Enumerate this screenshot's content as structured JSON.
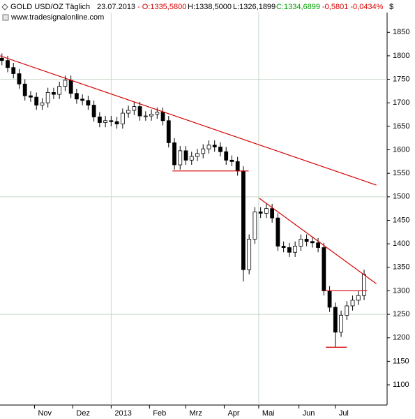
{
  "chart_data": {
    "type": "candlestick",
    "header": {
      "symbol": "GOLD USD/OZ Täglich",
      "date": "23.07.2013",
      "open": "- O:1335,5800",
      "high": "H:1338,5000",
      "low": "L:1326,1899",
      "close": "C:1334,6899",
      "change": "-0,5801 -0,0434%"
    },
    "source": "www.tradesignalonline.com",
    "y_unit": "$",
    "x": [
      0,
      3,
      6,
      9,
      12,
      15,
      18,
      21,
      24,
      27,
      30,
      33,
      36,
      39,
      42,
      45,
      48,
      51,
      54,
      57,
      60,
      63,
      66,
      69,
      72,
      75,
      78,
      81,
      84,
      87,
      90,
      93,
      96,
      99,
      102,
      105,
      108,
      111,
      114,
      117,
      120,
      123,
      126,
      129,
      132,
      135,
      138,
      141,
      144,
      147,
      150,
      153,
      156,
      159,
      162,
      165,
      168,
      171,
      174,
      177,
      180,
      183,
      186,
      189
    ],
    "open": [
      1795,
      1790,
      1775,
      1762,
      1740,
      1715,
      1712,
      1695,
      1700,
      1722,
      1718,
      1735,
      1748,
      1720,
      1708,
      1705,
      1695,
      1670,
      1658,
      1662,
      1660,
      1655,
      1678,
      1684,
      1692,
      1672,
      1672,
      1676,
      1680,
      1662,
      1615,
      1568,
      1598,
      1578,
      1586,
      1592,
      1602,
      1610,
      1606,
      1596,
      1578,
      1575,
      1555,
      1345,
      1410,
      1468,
      1465,
      1475,
      1455,
      1395,
      1392,
      1382,
      1395,
      1410,
      1405,
      1402,
      1392,
      1300,
      1265,
      1212,
      1248,
      1268,
      1280,
      1290
    ],
    "high": [
      1805,
      1800,
      1785,
      1772,
      1750,
      1725,
      1722,
      1710,
      1732,
      1732,
      1745,
      1758,
      1758,
      1730,
      1718,
      1715,
      1705,
      1680,
      1672,
      1672,
      1670,
      1688,
      1694,
      1702,
      1702,
      1682,
      1686,
      1690,
      1690,
      1672,
      1625,
      1608,
      1608,
      1596,
      1602,
      1612,
      1620,
      1620,
      1616,
      1606,
      1588,
      1585,
      1565,
      1420,
      1478,
      1478,
      1485,
      1485,
      1465,
      1405,
      1402,
      1405,
      1420,
      1420,
      1415,
      1412,
      1402,
      1310,
      1275,
      1258,
      1278,
      1290,
      1300,
      1345
    ],
    "low": [
      1780,
      1765,
      1752,
      1730,
      1705,
      1702,
      1685,
      1685,
      1690,
      1708,
      1708,
      1725,
      1710,
      1698,
      1695,
      1685,
      1660,
      1648,
      1648,
      1650,
      1645,
      1645,
      1668,
      1674,
      1662,
      1662,
      1662,
      1666,
      1652,
      1605,
      1558,
      1558,
      1568,
      1568,
      1576,
      1582,
      1592,
      1596,
      1586,
      1568,
      1565,
      1545,
      1320,
      1335,
      1400,
      1455,
      1455,
      1445,
      1385,
      1382,
      1372,
      1372,
      1385,
      1395,
      1392,
      1382,
      1290,
      1255,
      1180,
      1202,
      1238,
      1258,
      1270,
      1280
    ],
    "close": [
      1790,
      1775,
      1762,
      1740,
      1715,
      1712,
      1695,
      1700,
      1722,
      1718,
      1735,
      1748,
      1720,
      1708,
      1705,
      1695,
      1670,
      1658,
      1662,
      1660,
      1655,
      1678,
      1684,
      1692,
      1672,
      1672,
      1676,
      1680,
      1662,
      1615,
      1568,
      1598,
      1578,
      1586,
      1592,
      1602,
      1610,
      1606,
      1596,
      1578,
      1575,
      1555,
      1345,
      1410,
      1468,
      1465,
      1475,
      1455,
      1395,
      1392,
      1382,
      1395,
      1410,
      1405,
      1402,
      1392,
      1300,
      1265,
      1212,
      1248,
      1268,
      1280,
      1290,
      1335
    ],
    "xlim": [
      -1,
      201
    ],
    "ylim": [
      1057,
      1892
    ],
    "yticks": [
      1100,
      1150,
      1200,
      1250,
      1300,
      1350,
      1400,
      1450,
      1500,
      1550,
      1600,
      1650,
      1700,
      1750,
      1800,
      1850
    ],
    "xticks": [
      {
        "value": 17,
        "label": "Nov"
      },
      {
        "value": 37,
        "label": "Dez"
      },
      {
        "value": 57,
        "label": "2013"
      },
      {
        "value": 77,
        "label": "Feb"
      },
      {
        "value": 96,
        "label": "Mrz"
      },
      {
        "value": 116,
        "label": "Apr"
      },
      {
        "value": 134,
        "label": "Mai"
      },
      {
        "value": 155,
        "label": "Jun"
      },
      {
        "value": 174,
        "label": "Jul"
      }
    ],
    "ygrid": [
      1250,
      1500,
      1750
    ],
    "xgrid": [
      57,
      134
    ],
    "trendline_color": "#d40000",
    "trendlines": [
      {
        "x": [
          -1,
          195.4
        ],
        "y": [
          1800,
          1525
        ]
      },
      {
        "x": [
          134.3,
          195.4
        ],
        "y": [
          1497,
          1315
        ]
      },
      {
        "x": [
          89,
          128.8
        ],
        "y": [
          1555,
          1555
        ]
      },
      {
        "x": [
          168,
          190.6
        ],
        "y": [
          1300,
          1300
        ]
      },
      {
        "x": [
          169,
          180
        ],
        "y": [
          1180,
          1180
        ]
      }
    ]
  }
}
